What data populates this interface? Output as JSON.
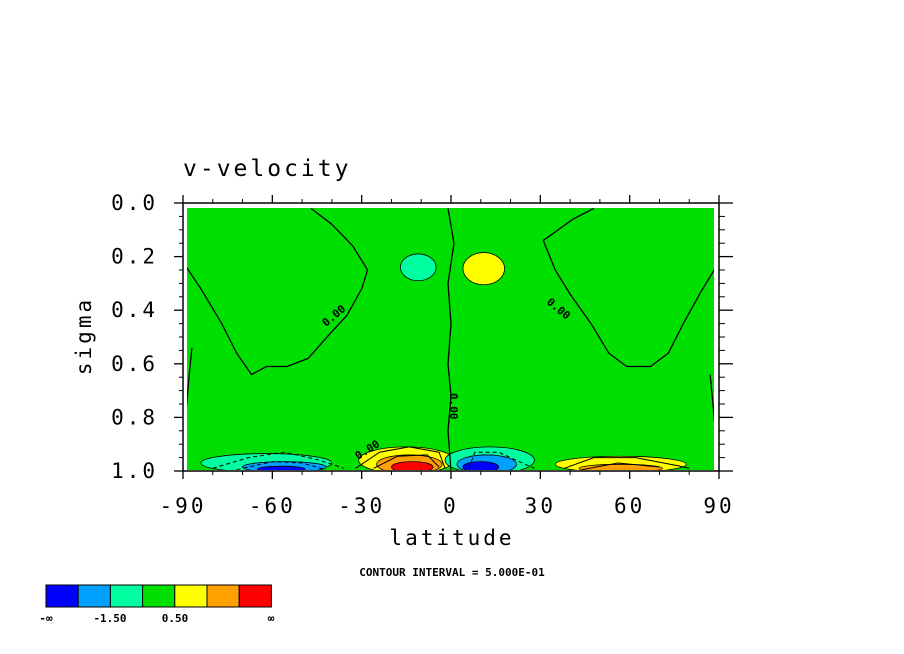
{
  "chart_data": {
    "type": "heatmap",
    "title": "v-velocity",
    "xlabel": "latitude",
    "ylabel": "sigma",
    "xlim": [
      -90,
      90
    ],
    "ylim": [
      1.0,
      0.0
    ],
    "x_ticks": [
      "-90",
      "-60",
      "-30",
      "0",
      "30",
      "60",
      "90"
    ],
    "y_ticks": [
      "0.0",
      "0.2",
      "0.4",
      "0.6",
      "0.8",
      "1.0"
    ],
    "x_tick_values": [
      -90,
      -60,
      -30,
      0,
      30,
      60,
      90
    ],
    "y_tick_values": [
      0.0,
      0.2,
      0.4,
      0.6,
      0.8,
      1.0
    ],
    "contour_interval_text": "CONTOUR INTERVAL = 5.000E-01",
    "contour_labels": [
      "0.00",
      "0.00",
      "0.00",
      "0.00"
    ],
    "colorbar": {
      "colors": [
        "#0000ff",
        "#00a0ff",
        "#00ffa0",
        "#00e000",
        "#ffff00",
        "#ffa000",
        "#ff0000"
      ],
      "labels": [
        "-∞",
        "-1.50",
        "0.50",
        "∞"
      ]
    },
    "background_color": "#00e000",
    "blobs": [
      {
        "lat": -62,
        "sigma": 0.97,
        "dlat": 22,
        "dsig": 0.035,
        "color": "#00ffa0"
      },
      {
        "lat": -56,
        "sigma": 0.985,
        "dlat": 14,
        "dsig": 0.02,
        "color": "#00a0ff"
      },
      {
        "lat": -57,
        "sigma": 0.992,
        "dlat": 8,
        "dsig": 0.01,
        "color": "#0000ff"
      },
      {
        "lat": -15,
        "sigma": 0.96,
        "dlat": 16,
        "dsig": 0.05,
        "color": "#ffff00"
      },
      {
        "lat": -14,
        "sigma": 0.975,
        "dlat": 11,
        "dsig": 0.035,
        "color": "#ffa000"
      },
      {
        "lat": -13,
        "sigma": 0.985,
        "dlat": 7,
        "dsig": 0.02,
        "color": "#ff0000"
      },
      {
        "lat": 13,
        "sigma": 0.96,
        "dlat": 15,
        "dsig": 0.05,
        "color": "#00ffa0"
      },
      {
        "lat": 12,
        "sigma": 0.975,
        "dlat": 10,
        "dsig": 0.035,
        "color": "#00a0ff"
      },
      {
        "lat": 10,
        "sigma": 0.985,
        "dlat": 6,
        "dsig": 0.02,
        "color": "#0000ff"
      },
      {
        "lat": 57,
        "sigma": 0.975,
        "dlat": 22,
        "dsig": 0.03,
        "color": "#ffff00"
      },
      {
        "lat": 57,
        "sigma": 0.99,
        "dlat": 14,
        "dsig": 0.015,
        "color": "#ffa000"
      },
      {
        "lat": -11,
        "sigma": 0.24,
        "dlat": 6,
        "dsig": 0.05,
        "color": "#00ffa0"
      },
      {
        "lat": 11,
        "sigma": 0.245,
        "dlat": 7,
        "dsig": 0.06,
        "color": "#ffff00"
      }
    ],
    "zero_contours": [
      [
        [
          -90,
          0.22
        ],
        [
          -84,
          0.32
        ],
        [
          -77,
          0.45
        ],
        [
          -72,
          0.56
        ],
        [
          -67,
          0.64
        ],
        [
          -62,
          0.61
        ],
        [
          -55,
          0.61
        ],
        [
          -48,
          0.58
        ],
        [
          -40,
          0.48
        ],
        [
          -35,
          0.42
        ],
        [
          -30,
          0.32
        ],
        [
          -28,
          0.25
        ],
        [
          -33,
          0.16
        ],
        [
          -40,
          0.08
        ],
        [
          -47,
          0.02
        ]
      ],
      [
        [
          90,
          0.22
        ],
        [
          84,
          0.33
        ],
        [
          78,
          0.45
        ],
        [
          73,
          0.56
        ],
        [
          67,
          0.61
        ],
        [
          59,
          0.61
        ],
        [
          53,
          0.56
        ],
        [
          47,
          0.45
        ],
        [
          40,
          0.34
        ],
        [
          35,
          0.25
        ],
        [
          31,
          0.14
        ],
        [
          41,
          0.06
        ],
        [
          48,
          0.02
        ]
      ],
      [
        [
          -1,
          0.02
        ],
        [
          1,
          0.15
        ],
        [
          -1,
          0.3
        ],
        [
          0,
          0.45
        ],
        [
          -1,
          0.6
        ],
        [
          0,
          0.72
        ],
        [
          -1,
          0.85
        ],
        [
          0,
          1.0
        ]
      ],
      [
        [
          -87,
          0.54
        ],
        [
          -88,
          0.65
        ],
        [
          -89,
          0.78
        ]
      ],
      [
        [
          87,
          0.64
        ],
        [
          88,
          0.75
        ],
        [
          89,
          0.88
        ]
      ]
    ],
    "dashed_contours": [
      [
        [
          -80,
          0.99
        ],
        [
          -68,
          0.95
        ],
        [
          -56,
          0.93
        ],
        [
          -44,
          0.96
        ],
        [
          -36,
          0.99
        ]
      ],
      [
        [
          -72,
          0.995
        ],
        [
          -60,
          0.965
        ],
        [
          -50,
          0.97
        ],
        [
          -42,
          0.995
        ]
      ],
      [
        [
          6,
          0.99
        ],
        [
          8,
          0.93
        ],
        [
          16,
          0.93
        ],
        [
          24,
          0.97
        ],
        [
          28,
          0.99
        ]
      ]
    ],
    "solid_contours": [
      [
        [
          -32,
          0.99
        ],
        [
          -24,
          0.93
        ],
        [
          -14,
          0.91
        ],
        [
          -4,
          0.93
        ],
        [
          -2,
          0.99
        ]
      ],
      [
        [
          -26,
          0.99
        ],
        [
          -18,
          0.945
        ],
        [
          -8,
          0.94
        ],
        [
          -4,
          0.985
        ]
      ],
      [
        [
          38,
          0.99
        ],
        [
          48,
          0.95
        ],
        [
          62,
          0.95
        ],
        [
          76,
          0.98
        ],
        [
          80,
          0.99
        ]
      ],
      [
        [
          44,
          0.995
        ],
        [
          56,
          0.97
        ],
        [
          70,
          0.985
        ]
      ]
    ]
  }
}
